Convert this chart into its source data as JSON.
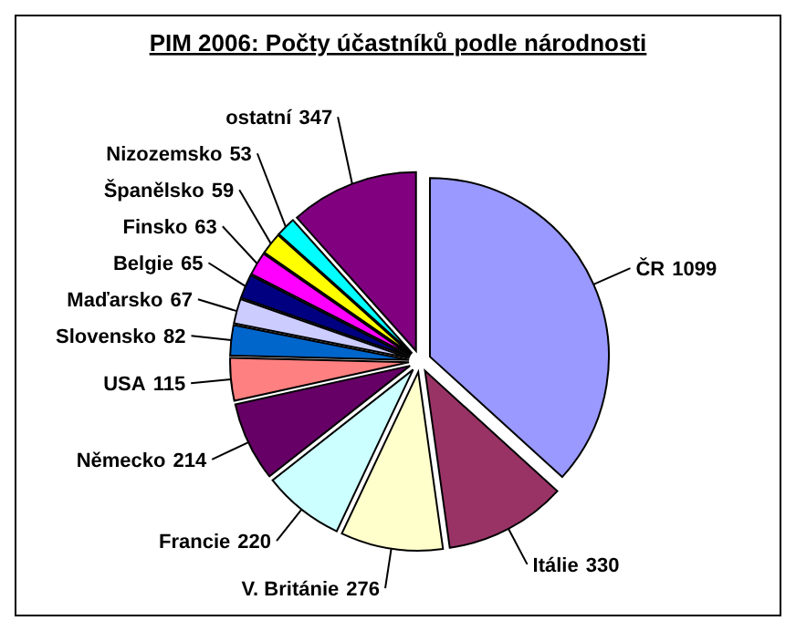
{
  "chart_data": {
    "type": "pie",
    "title": "PIM 2006: Počty účastníků podle národnosti",
    "categories": [
      "ČR",
      "Itálie",
      "V. Británie",
      "Francie",
      "Německo",
      "USA",
      "Slovensko",
      "Maďarsko",
      "Belgie",
      "Finsko",
      "Španělsko",
      "Nizozemsko",
      "ostatní"
    ],
    "values": [
      1099,
      330,
      276,
      220,
      214,
      115,
      82,
      67,
      65,
      63,
      59,
      53,
      347
    ],
    "colors": [
      "#9999ff",
      "#993366",
      "#ffffcc",
      "#ccffff",
      "#660066",
      "#ff8080",
      "#0066cc",
      "#ccccff",
      "#000080",
      "#ff00ff",
      "#ffff00",
      "#00ffff",
      "#800080"
    ],
    "data_labels": true,
    "legend": false
  }
}
